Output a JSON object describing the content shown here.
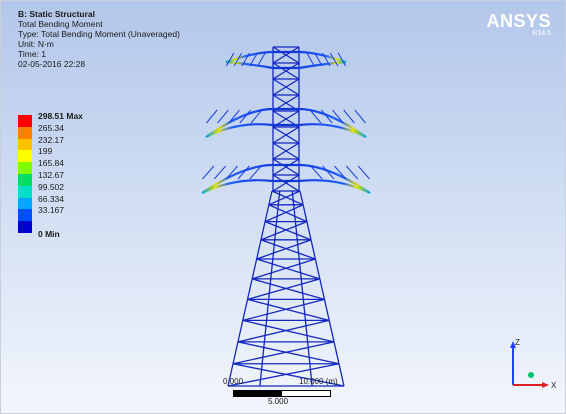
{
  "info": {
    "title": "B: Static Structural",
    "result": "Total Bending Moment",
    "type": "Type: Total Bending Moment (Unaveraged)",
    "unit": "Unit: N·m",
    "time": "Time: 1",
    "date": "02-05-2016 22:28"
  },
  "legend": {
    "max_label": "298.51 Max",
    "levels": [
      "265.34",
      "232.17",
      "199",
      "165.84",
      "132.67",
      "99.502",
      "66.334",
      "33.167"
    ],
    "min_label": "0 Min",
    "colors": [
      "#ff0000",
      "#ff8000",
      "#ffc000",
      "#ffff00",
      "#80ff00",
      "#00e060",
      "#00e0c8",
      "#00a8ff",
      "#0050ff",
      "#0000d0"
    ]
  },
  "logo": {
    "name": "ANSYS",
    "version": "R14.5"
  },
  "scale": {
    "left": "0.000",
    "right": "10.000 (m)",
    "middle": "5.000"
  },
  "triad": {
    "z": "Z",
    "x": "X",
    "colors": {
      "z": "#2040ff",
      "x": "#e02020",
      "y": "#00c070"
    }
  }
}
